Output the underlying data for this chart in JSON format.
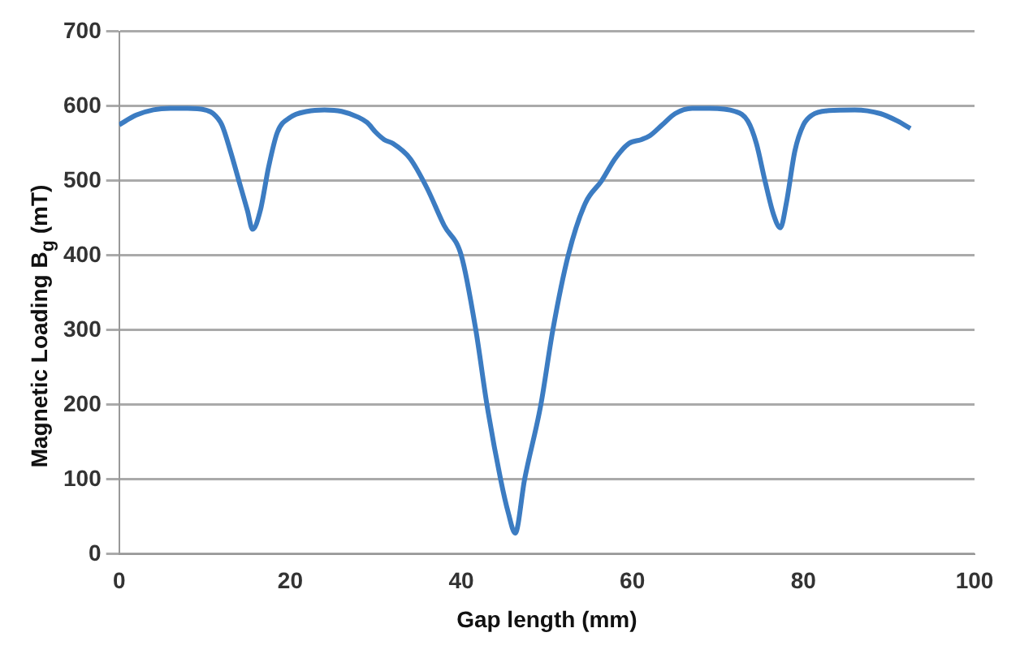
{
  "chart_data": {
    "type": "line",
    "xlabel": "Gap length (mm)",
    "ylabel": "Magnetic Loading B$_{g}$ (mT)",
    "x": [
      0,
      2,
      4,
      6,
      8,
      10,
      11,
      12,
      13,
      14,
      15,
      15.6,
      16.5,
      17.5,
      18.5,
      20,
      22,
      24,
      26,
      28,
      29,
      30,
      31,
      32,
      34,
      36,
      38,
      40,
      41.7,
      43,
      44.6,
      45.5,
      46.3,
      47.4,
      49.3,
      50.7,
      52.5,
      54.5,
      56.4,
      58,
      59.6,
      61,
      62,
      63.5,
      65,
      67,
      69,
      72,
      73.5,
      74.5,
      75.5,
      76.5,
      77.3,
      78,
      79,
      80,
      81,
      83,
      86,
      89,
      91,
      92.5
    ],
    "series": [
      {
        "color": "#3c7cc2",
        "values": [
          575,
          588,
          595,
          597,
          597,
          595,
          590,
          575,
          540,
          500,
          460,
          435,
          460,
          520,
          565,
          585,
          593,
          595,
          593,
          585,
          578,
          565,
          555,
          550,
          530,
          490,
          440,
          400,
          300,
          200,
          100,
          55,
          28,
          100,
          200,
          300,
          400,
          470,
          500,
          530,
          550,
          555,
          560,
          575,
          590,
          597,
          597,
          593,
          580,
          550,
          500,
          455,
          437,
          470,
          540,
          575,
          588,
          594,
          595,
          590,
          580,
          570
        ]
      }
    ],
    "xlim": [
      0,
      100
    ],
    "xticks": [
      0,
      20,
      40,
      60,
      80,
      100
    ],
    "ylim": [
      0,
      700
    ],
    "yticks": [
      0,
      100,
      200,
      300,
      400,
      500,
      600,
      700
    ],
    "grid": "y",
    "legend": false,
    "marker": "none",
    "line_style": "solid"
  }
}
